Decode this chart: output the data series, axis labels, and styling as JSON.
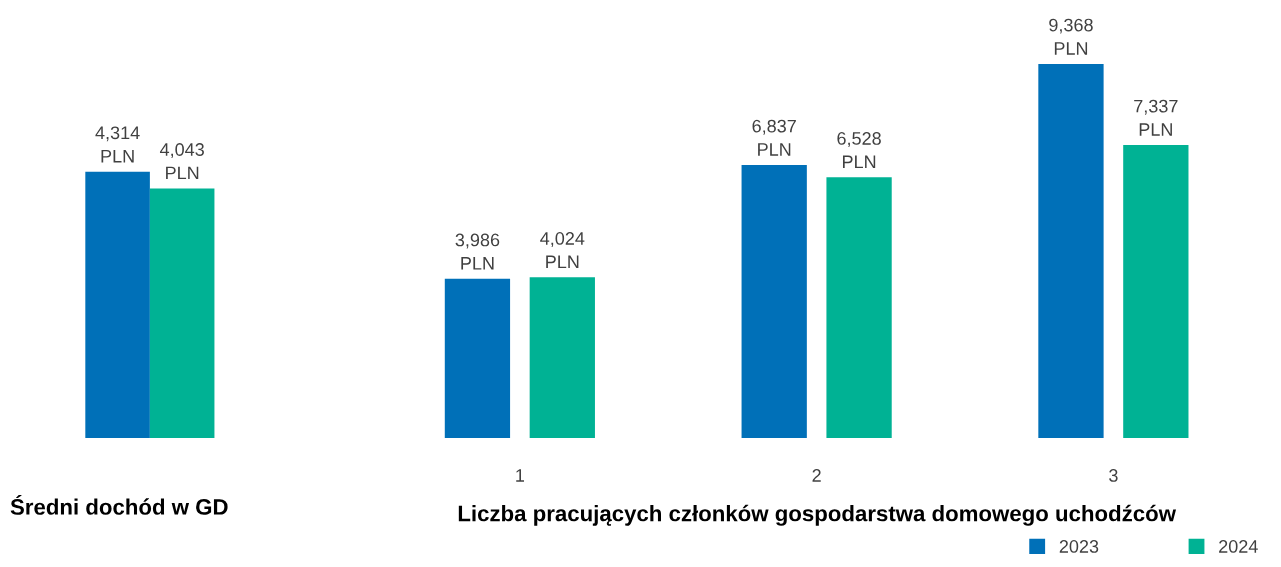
{
  "chart_data": [
    {
      "type": "bar",
      "categories": [
        null
      ],
      "xlabel": "Średni dochód w GD",
      "tick_labels": false,
      "series": [
        {
          "color": "#0070b8",
          "values": [
            4314
          ],
          "value_labels": [
            "4,314 PLN"
          ]
        },
        {
          "color": "#00b294",
          "values": [
            4043
          ],
          "value_labels": [
            "4,043 PLN"
          ]
        }
      ]
    },
    {
      "type": "bar",
      "categories": [
        "1",
        "2",
        "3"
      ],
      "xlabel": "Liczba pracujących członków gospodarstwa domowego uchodźców",
      "tick_labels": "x",
      "legend": "bottom right",
      "series": [
        {
          "name": "2023",
          "color": "#0070b8",
          "values": [
            3986,
            6837,
            9368
          ],
          "value_labels": [
            "3,986 PLN",
            "6,837 PLN",
            "9,368 PLN"
          ]
        },
        {
          "name": "2024",
          "color": "#00b294",
          "values": [
            4024,
            6528,
            7337
          ],
          "value_labels": [
            "4,024 PLN",
            "6,528 PLN",
            "7,337 PLN"
          ]
        }
      ]
    }
  ]
}
